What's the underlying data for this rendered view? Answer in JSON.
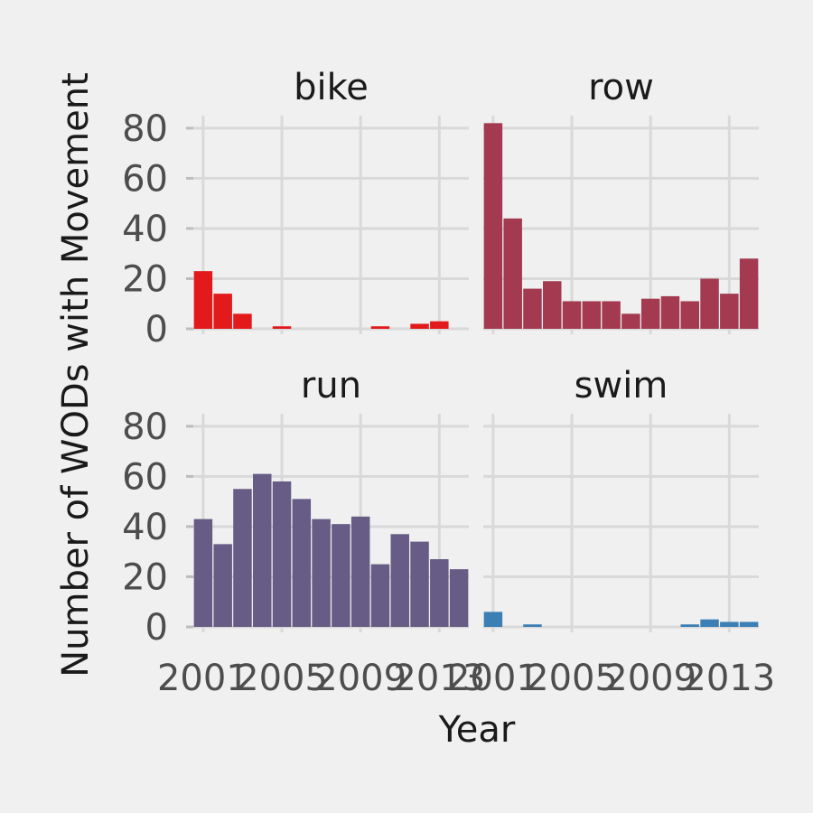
{
  "chart_data": {
    "type": "bar",
    "xlabel": "Year",
    "ylabel": "Number of WODs with Movement",
    "ylim": [
      0,
      85
    ],
    "y_ticks": [
      0,
      20,
      40,
      60,
      80
    ],
    "x_tick_values": [
      2001,
      2005,
      2009,
      2013
    ],
    "x_tick_labels": [
      "2001",
      "2005",
      "2009",
      "2013"
    ],
    "xlim": [
      2000.5,
      2014.5
    ],
    "years": [
      2001,
      2002,
      2003,
      2004,
      2005,
      2006,
      2007,
      2008,
      2009,
      2010,
      2011,
      2012,
      2013,
      2014
    ],
    "grid": true,
    "panels": [
      {
        "name": "bike",
        "color": "#e31a1c",
        "values": [
          23,
          14,
          6,
          0,
          1,
          0,
          0,
          0,
          0,
          1,
          0,
          2,
          3,
          0
        ]
      },
      {
        "name": "row",
        "color": "#a33a50",
        "values": [
          82,
          44,
          16,
          19,
          11,
          11,
          11,
          6,
          12,
          13,
          11,
          20,
          14,
          28
        ]
      },
      {
        "name": "run",
        "color": "#665c85",
        "values": [
          43,
          33,
          55,
          61,
          58,
          51,
          43,
          41,
          44,
          25,
          37,
          34,
          27,
          23
        ]
      },
      {
        "name": "swim",
        "color": "#3b7fb5",
        "values": [
          6,
          0,
          1,
          0,
          0,
          0,
          0,
          0,
          0,
          0,
          1,
          3,
          2,
          2
        ]
      }
    ]
  }
}
